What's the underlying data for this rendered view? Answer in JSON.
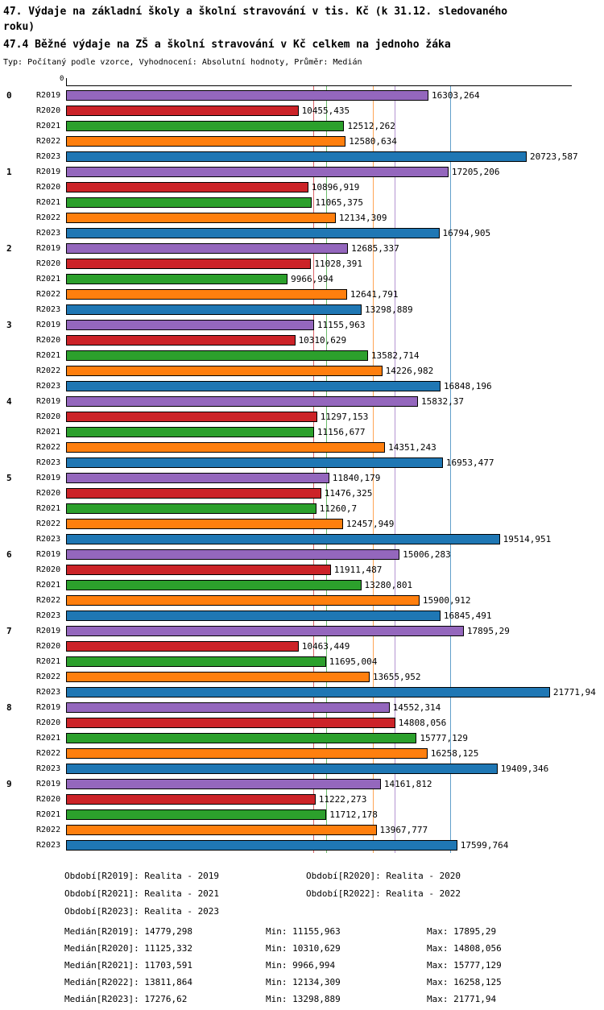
{
  "header": {
    "title": "47. Výdaje na základní školy a školní stravování v tis. Kč (k 31.12. sledovaného roku)",
    "subtitle": "47.4 Běžné výdaje na ZŠ a školní stravování v Kč celkem na jednoho žáka",
    "meta": "Typ: Počítaný podle vzorce, Vyhodnocení: Absolutní hodnoty, Průměr: Medián"
  },
  "chart_data": {
    "type": "bar",
    "orientation": "horizontal",
    "title": "47.4 Běžné výdaje na ZŠ a školní stravování v Kč celkem na jednoho žáka",
    "x_axis": {
      "min": 0,
      "max": 22800,
      "origin_label": "0",
      "grid": false
    },
    "legend_position": "bottom",
    "series_labels": [
      "R2019",
      "R2020",
      "R2021",
      "R2022",
      "R2023"
    ],
    "series_colors": [
      "#9467bd",
      "#cc2328",
      "#2ca02c",
      "#ff7f0e",
      "#1f77b4"
    ],
    "categories": [
      "0",
      "1",
      "2",
      "3",
      "4",
      "5",
      "6",
      "7",
      "8",
      "9"
    ],
    "groups": [
      {
        "label": "0",
        "values": [
          "16303,264",
          "10455,435",
          "12512,262",
          "12580,634",
          "20723,587"
        ]
      },
      {
        "label": "1",
        "values": [
          "17205,206",
          "10896,919",
          "11065,375",
          "12134,309",
          "16794,905"
        ]
      },
      {
        "label": "2",
        "values": [
          "12685,337",
          "11028,391",
          "9966,994",
          "12641,791",
          "13298,889"
        ]
      },
      {
        "label": "3",
        "values": [
          "11155,963",
          "10310,629",
          "13582,714",
          "14226,982",
          "16848,196"
        ]
      },
      {
        "label": "4",
        "values": [
          "15832,37",
          "11297,153",
          "11156,677",
          "14351,243",
          "16953,477"
        ]
      },
      {
        "label": "5",
        "values": [
          "11840,179",
          "11476,325",
          "11260,7",
          "12457,949",
          "19514,951"
        ]
      },
      {
        "label": "6",
        "values": [
          "15006,283",
          "11911,487",
          "13280,801",
          "15900,912",
          "16845,491"
        ]
      },
      {
        "label": "7",
        "values": [
          "17895,29",
          "10463,449",
          "11695,004",
          "13655,952",
          "21771,94"
        ]
      },
      {
        "label": "8",
        "values": [
          "14552,314",
          "14808,056",
          "15777,129",
          "16258,125",
          "19409,346"
        ]
      },
      {
        "label": "9",
        "values": [
          "14161,812",
          "11222,273",
          "11712,178",
          "13967,777",
          "17599,764"
        ]
      }
    ],
    "medians": [
      "14779,298",
      "11125,332",
      "11703,591",
      "13811,864",
      "17276,62"
    ]
  },
  "legend": {
    "items": [
      "Období[R2019]: Realita - 2019",
      "Období[R2020]: Realita - 2020",
      "Období[R2021]: Realita - 2021",
      "Období[R2022]: Realita - 2022",
      "Období[R2023]: Realita - 2023"
    ]
  },
  "stats": {
    "rows": [
      {
        "median": "Medián[R2019]: 14779,298",
        "min": "Min: 11155,963",
        "max": "Max: 17895,29"
      },
      {
        "median": "Medián[R2020]: 11125,332",
        "min": "Min: 10310,629",
        "max": "Max: 14808,056"
      },
      {
        "median": "Medián[R2021]: 11703,591",
        "min": "Min: 9966,994",
        "max": "Max: 15777,129"
      },
      {
        "median": "Medián[R2022]: 13811,864",
        "min": "Min: 12134,309",
        "max": "Max: 16258,125"
      },
      {
        "median": "Medián[R2023]: 17276,62",
        "min": "Min: 13298,889",
        "max": "Max: 21771,94"
      }
    ]
  }
}
